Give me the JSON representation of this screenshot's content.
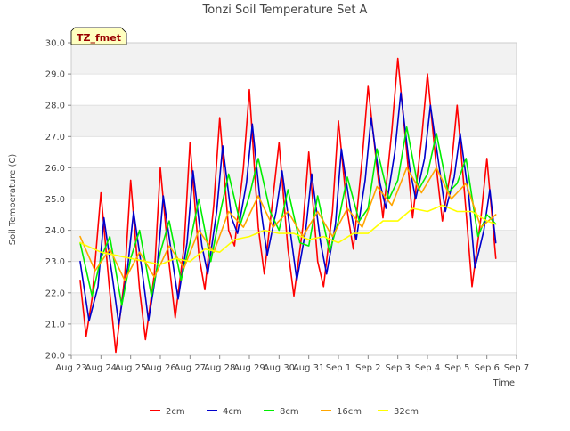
{
  "chart_data": {
    "type": "line",
    "title": "Tonzi Soil Temperature Set A",
    "xlabel": "Time",
    "ylabel": "Soil Temperature (C)",
    "annotation": "TZ_fmet",
    "ylim": [
      20.0,
      30.0
    ],
    "xlim": [
      0,
      15
    ],
    "yticks": [
      20.0,
      21.0,
      22.0,
      23.0,
      24.0,
      25.0,
      26.0,
      27.0,
      28.0,
      29.0,
      30.0
    ],
    "ytick_labels": [
      "20.0",
      "21.0",
      "22.0",
      "23.0",
      "24.0",
      "25.0",
      "26.0",
      "27.0",
      "28.0",
      "29.0",
      "30.0"
    ],
    "xtick_labels": [
      "Aug 23",
      "Aug 24",
      "Aug 25",
      "Aug 26",
      "Aug 27",
      "Aug 28",
      "Aug 29",
      "Aug 30",
      "Aug 31",
      "Sep 1",
      "Sep 2",
      "Sep 3",
      "Sep 4",
      "Sep 5",
      "Sep 6",
      "Sep 7"
    ],
    "grid": true,
    "legend_position": "bottom-center",
    "series": [
      {
        "name": "2cm",
        "color": "#ff0000",
        "x": [
          0.3,
          0.5,
          0.7,
          1.0,
          1.3,
          1.5,
          1.8,
          2.0,
          2.3,
          2.5,
          2.8,
          3.0,
          3.3,
          3.5,
          3.8,
          4.0,
          4.3,
          4.5,
          4.8,
          5.0,
          5.3,
          5.5,
          5.8,
          6.0,
          6.3,
          6.5,
          6.8,
          7.0,
          7.3,
          7.5,
          7.8,
          8.0,
          8.3,
          8.5,
          8.8,
          9.0,
          9.3,
          9.5,
          9.8,
          10.0,
          10.3,
          10.5,
          10.8,
          11.0,
          11.3,
          11.5,
          11.8,
          12.0,
          12.3,
          12.5,
          12.8,
          13.0,
          13.3,
          13.5,
          13.8,
          14.0,
          14.3
        ],
        "y": [
          22.4,
          20.6,
          21.8,
          25.2,
          22.0,
          20.1,
          22.5,
          25.6,
          22.1,
          20.5,
          22.6,
          26.0,
          22.9,
          21.2,
          23.5,
          26.8,
          23.2,
          22.1,
          24.8,
          27.6,
          24.0,
          23.5,
          26.0,
          28.5,
          24.1,
          22.6,
          25.1,
          26.8,
          23.4,
          21.9,
          24.1,
          26.5,
          23.0,
          22.2,
          24.6,
          27.5,
          24.6,
          23.4,
          26.3,
          28.6,
          26.0,
          24.4,
          27.2,
          29.5,
          26.5,
          24.4,
          26.9,
          29.0,
          26.0,
          24.3,
          26.0,
          28.0,
          24.6,
          22.2,
          24.4,
          26.3,
          23.1
        ]
      },
      {
        "name": "4cm",
        "color": "#0000cc",
        "x": [
          0.3,
          0.6,
          0.9,
          1.1,
          1.4,
          1.6,
          1.9,
          2.1,
          2.4,
          2.6,
          2.9,
          3.1,
          3.4,
          3.6,
          3.9,
          4.1,
          4.4,
          4.6,
          4.9,
          5.1,
          5.4,
          5.6,
          5.9,
          6.1,
          6.4,
          6.6,
          6.9,
          7.1,
          7.4,
          7.6,
          7.9,
          8.1,
          8.4,
          8.6,
          8.9,
          9.1,
          9.4,
          9.6,
          9.9,
          10.1,
          10.4,
          10.6,
          10.9,
          11.1,
          11.4,
          11.6,
          11.9,
          12.1,
          12.4,
          12.6,
          12.9,
          13.1,
          13.4,
          13.6,
          13.9,
          14.1,
          14.3
        ],
        "y": [
          23.0,
          21.1,
          22.2,
          24.4,
          22.4,
          21.0,
          22.8,
          24.6,
          22.6,
          21.1,
          22.9,
          25.1,
          23.1,
          21.8,
          23.6,
          25.9,
          23.5,
          22.6,
          24.6,
          26.7,
          24.4,
          23.9,
          25.5,
          27.4,
          24.6,
          23.2,
          24.6,
          25.9,
          23.8,
          22.4,
          24.0,
          25.8,
          23.6,
          22.6,
          24.2,
          26.6,
          24.7,
          23.7,
          25.6,
          27.6,
          25.5,
          24.7,
          26.5,
          28.4,
          26.0,
          25.0,
          26.3,
          28.0,
          26.0,
          24.6,
          25.7,
          27.1,
          25.0,
          22.8,
          24.0,
          25.3,
          23.6
        ]
      },
      {
        "name": "8cm",
        "color": "#00ee00",
        "x": [
          0.3,
          0.7,
          1.0,
          1.3,
          1.7,
          2.0,
          2.3,
          2.7,
          3.0,
          3.3,
          3.7,
          4.0,
          4.3,
          4.7,
          5.0,
          5.3,
          5.7,
          6.0,
          6.3,
          6.7,
          7.0,
          7.3,
          7.7,
          8.0,
          8.3,
          8.7,
          9.0,
          9.3,
          9.7,
          10.0,
          10.3,
          10.7,
          11.0,
          11.3,
          11.7,
          12.0,
          12.3,
          12.7,
          13.0,
          13.3,
          13.7,
          14.0,
          14.3
        ],
        "y": [
          23.6,
          21.9,
          23.1,
          23.8,
          21.6,
          23.1,
          24.0,
          21.9,
          23.3,
          24.3,
          22.4,
          23.6,
          25.0,
          23.0,
          24.5,
          25.8,
          24.2,
          25.1,
          26.3,
          24.6,
          24.0,
          25.3,
          23.6,
          23.5,
          25.1,
          23.3,
          24.3,
          25.7,
          24.3,
          24.7,
          26.6,
          25.0,
          25.6,
          27.3,
          25.3,
          25.8,
          27.1,
          25.2,
          25.5,
          26.3,
          23.8,
          24.5,
          24.2
        ]
      },
      {
        "name": "16cm",
        "color": "#ffa500",
        "x": [
          0.3,
          0.8,
          1.3,
          1.8,
          2.3,
          2.8,
          3.3,
          3.8,
          4.3,
          4.8,
          5.3,
          5.8,
          6.3,
          6.8,
          7.3,
          7.8,
          8.3,
          8.8,
          9.3,
          9.8,
          10.3,
          10.8,
          11.3,
          11.8,
          12.3,
          12.8,
          13.3,
          13.8,
          14.3
        ],
        "y": [
          23.8,
          22.7,
          23.4,
          22.4,
          23.3,
          22.5,
          23.5,
          22.8,
          24.0,
          23.3,
          24.6,
          24.1,
          25.1,
          24.1,
          24.6,
          23.8,
          24.6,
          23.8,
          24.7,
          24.1,
          25.4,
          24.8,
          26.0,
          25.2,
          26.0,
          25.0,
          25.5,
          24.1,
          24.5
        ]
      },
      {
        "name": "32cm",
        "color": "#ffff00",
        "x": [
          0.3,
          1.0,
          1.5,
          2.0,
          2.5,
          3.0,
          3.5,
          4.0,
          4.5,
          5.0,
          5.5,
          6.0,
          6.5,
          7.0,
          7.5,
          8.0,
          8.5,
          9.0,
          9.5,
          10.0,
          10.5,
          11.0,
          11.5,
          12.0,
          12.5,
          13.0,
          13.5,
          14.0,
          14.3
        ],
        "y": [
          23.6,
          23.3,
          23.2,
          23.1,
          23.0,
          22.9,
          23.1,
          23.0,
          23.4,
          23.3,
          23.7,
          23.8,
          24.0,
          23.9,
          23.9,
          23.7,
          23.8,
          23.6,
          23.9,
          23.9,
          24.3,
          24.3,
          24.7,
          24.6,
          24.8,
          24.6,
          24.6,
          24.3,
          24.2
        ]
      }
    ]
  }
}
